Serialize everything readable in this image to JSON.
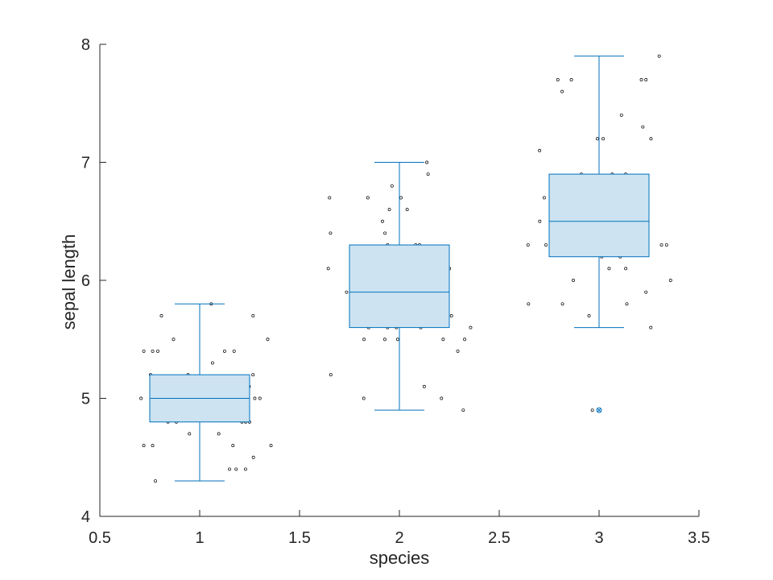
{
  "chart_data": {
    "type": "box",
    "xlabel": "species",
    "ylabel": "sepal length",
    "xlim": [
      0.5,
      3.5
    ],
    "ylim": [
      4,
      8
    ],
    "xticks": [
      "0.5",
      "1",
      "1.5",
      "2",
      "2.5",
      "3",
      "3.5"
    ],
    "yticks": [
      "4",
      "5",
      "6",
      "7",
      "8"
    ],
    "grid": false,
    "colors": {
      "box_fill": "#cde3f1",
      "box_edge": "#0072bd",
      "point": "#000000",
      "axis": "#262626"
    },
    "boxes": [
      {
        "x": 1,
        "min": 4.3,
        "q1": 4.8,
        "median": 5.0,
        "q3": 5.2,
        "max": 5.8,
        "outliers": []
      },
      {
        "x": 2,
        "min": 4.9,
        "q1": 5.6,
        "median": 5.9,
        "q3": 6.3,
        "max": 7.0,
        "outliers": []
      },
      {
        "x": 3,
        "min": 5.6,
        "q1": 6.2,
        "median": 6.5,
        "q3": 6.9,
        "max": 7.9,
        "outliers": [
          4.9
        ]
      }
    ],
    "points": [
      {
        "x": 1,
        "y": 5.1
      },
      {
        "x": 1,
        "y": 4.9
      },
      {
        "x": 1,
        "y": 4.7
      },
      {
        "x": 1,
        "y": 4.6
      },
      {
        "x": 1,
        "y": 5.0
      },
      {
        "x": 1,
        "y": 5.4
      },
      {
        "x": 1,
        "y": 4.6
      },
      {
        "x": 1,
        "y": 5.0
      },
      {
        "x": 1,
        "y": 4.4
      },
      {
        "x": 1,
        "y": 4.9
      },
      {
        "x": 1,
        "y": 5.4
      },
      {
        "x": 1,
        "y": 4.8
      },
      {
        "x": 1,
        "y": 4.8
      },
      {
        "x": 1,
        "y": 4.3
      },
      {
        "x": 1,
        "y": 5.8
      },
      {
        "x": 1,
        "y": 5.7
      },
      {
        "x": 1,
        "y": 5.4
      },
      {
        "x": 1,
        "y": 5.1
      },
      {
        "x": 1,
        "y": 5.7
      },
      {
        "x": 1,
        "y": 5.1
      },
      {
        "x": 1,
        "y": 5.4
      },
      {
        "x": 1,
        "y": 5.1
      },
      {
        "x": 1,
        "y": 4.6
      },
      {
        "x": 1,
        "y": 5.1
      },
      {
        "x": 1,
        "y": 4.8
      },
      {
        "x": 1,
        "y": 5.0
      },
      {
        "x": 1,
        "y": 5.0
      },
      {
        "x": 1,
        "y": 5.2
      },
      {
        "x": 1,
        "y": 5.2
      },
      {
        "x": 1,
        "y": 4.7
      },
      {
        "x": 1,
        "y": 4.8
      },
      {
        "x": 1,
        "y": 5.4
      },
      {
        "x": 1,
        "y": 5.2
      },
      {
        "x": 1,
        "y": 5.5
      },
      {
        "x": 1,
        "y": 4.9
      },
      {
        "x": 1,
        "y": 5.0
      },
      {
        "x": 1,
        "y": 5.5
      },
      {
        "x": 1,
        "y": 4.9
      },
      {
        "x": 1,
        "y": 4.4
      },
      {
        "x": 1,
        "y": 5.1
      },
      {
        "x": 1,
        "y": 5.0
      },
      {
        "x": 1,
        "y": 4.5
      },
      {
        "x": 1,
        "y": 4.4
      },
      {
        "x": 1,
        "y": 5.0
      },
      {
        "x": 1,
        "y": 5.1
      },
      {
        "x": 1,
        "y": 4.8
      },
      {
        "x": 1,
        "y": 5.1
      },
      {
        "x": 1,
        "y": 4.6
      },
      {
        "x": 1,
        "y": 5.3
      },
      {
        "x": 1,
        "y": 5.0
      },
      {
        "x": 2,
        "y": 7.0
      },
      {
        "x": 2,
        "y": 6.4
      },
      {
        "x": 2,
        "y": 6.9
      },
      {
        "x": 2,
        "y": 5.5
      },
      {
        "x": 2,
        "y": 6.5
      },
      {
        "x": 2,
        "y": 5.7
      },
      {
        "x": 2,
        "y": 6.3
      },
      {
        "x": 2,
        "y": 4.9
      },
      {
        "x": 2,
        "y": 6.6
      },
      {
        "x": 2,
        "y": 5.2
      },
      {
        "x": 2,
        "y": 5.0
      },
      {
        "x": 2,
        "y": 5.9
      },
      {
        "x": 2,
        "y": 6.0
      },
      {
        "x": 2,
        "y": 6.1
      },
      {
        "x": 2,
        "y": 5.6
      },
      {
        "x": 2,
        "y": 6.7
      },
      {
        "x": 2,
        "y": 5.6
      },
      {
        "x": 2,
        "y": 5.8
      },
      {
        "x": 2,
        "y": 6.2
      },
      {
        "x": 2,
        "y": 5.6
      },
      {
        "x": 2,
        "y": 5.9
      },
      {
        "x": 2,
        "y": 6.1
      },
      {
        "x": 2,
        "y": 6.3
      },
      {
        "x": 2,
        "y": 6.1
      },
      {
        "x": 2,
        "y": 6.4
      },
      {
        "x": 2,
        "y": 6.6
      },
      {
        "x": 2,
        "y": 6.8
      },
      {
        "x": 2,
        "y": 6.7
      },
      {
        "x": 2,
        "y": 6.0
      },
      {
        "x": 2,
        "y": 5.7
      },
      {
        "x": 2,
        "y": 5.5
      },
      {
        "x": 2,
        "y": 5.5
      },
      {
        "x": 2,
        "y": 5.8
      },
      {
        "x": 2,
        "y": 6.0
      },
      {
        "x": 2,
        "y": 5.4
      },
      {
        "x": 2,
        "y": 6.0
      },
      {
        "x": 2,
        "y": 6.7
      },
      {
        "x": 2,
        "y": 6.3
      },
      {
        "x": 2,
        "y": 5.6
      },
      {
        "x": 2,
        "y": 5.5
      },
      {
        "x": 2,
        "y": 5.5
      },
      {
        "x": 2,
        "y": 6.1
      },
      {
        "x": 2,
        "y": 5.8
      },
      {
        "x": 2,
        "y": 5.0
      },
      {
        "x": 2,
        "y": 5.6
      },
      {
        "x": 2,
        "y": 5.7
      },
      {
        "x": 2,
        "y": 5.7
      },
      {
        "x": 2,
        "y": 6.2
      },
      {
        "x": 2,
        "y": 5.1
      },
      {
        "x": 2,
        "y": 5.7
      },
      {
        "x": 3,
        "y": 6.3
      },
      {
        "x": 3,
        "y": 5.8
      },
      {
        "x": 3,
        "y": 7.1
      },
      {
        "x": 3,
        "y": 6.3
      },
      {
        "x": 3,
        "y": 6.5
      },
      {
        "x": 3,
        "y": 7.6
      },
      {
        "x": 3,
        "y": 4.9
      },
      {
        "x": 3,
        "y": 7.3
      },
      {
        "x": 3,
        "y": 6.7
      },
      {
        "x": 3,
        "y": 7.2
      },
      {
        "x": 3,
        "y": 6.5
      },
      {
        "x": 3,
        "y": 6.4
      },
      {
        "x": 3,
        "y": 6.8
      },
      {
        "x": 3,
        "y": 5.7
      },
      {
        "x": 3,
        "y": 5.8
      },
      {
        "x": 3,
        "y": 6.4
      },
      {
        "x": 3,
        "y": 6.5
      },
      {
        "x": 3,
        "y": 7.7
      },
      {
        "x": 3,
        "y": 7.7
      },
      {
        "x": 3,
        "y": 6.0
      },
      {
        "x": 3,
        "y": 6.9
      },
      {
        "x": 3,
        "y": 5.6
      },
      {
        "x": 3,
        "y": 7.7
      },
      {
        "x": 3,
        "y": 6.3
      },
      {
        "x": 3,
        "y": 6.7
      },
      {
        "x": 3,
        "y": 7.2
      },
      {
        "x": 3,
        "y": 6.2
      },
      {
        "x": 3,
        "y": 6.1
      },
      {
        "x": 3,
        "y": 6.4
      },
      {
        "x": 3,
        "y": 7.2
      },
      {
        "x": 3,
        "y": 7.4
      },
      {
        "x": 3,
        "y": 7.9
      },
      {
        "x": 3,
        "y": 6.4
      },
      {
        "x": 3,
        "y": 6.3
      },
      {
        "x": 3,
        "y": 6.1
      },
      {
        "x": 3,
        "y": 7.7
      },
      {
        "x": 3,
        "y": 6.3
      },
      {
        "x": 3,
        "y": 6.4
      },
      {
        "x": 3,
        "y": 6.0
      },
      {
        "x": 3,
        "y": 6.9
      },
      {
        "x": 3,
        "y": 6.7
      },
      {
        "x": 3,
        "y": 6.9
      },
      {
        "x": 3,
        "y": 5.8
      },
      {
        "x": 3,
        "y": 6.8
      },
      {
        "x": 3,
        "y": 6.7
      },
      {
        "x": 3,
        "y": 6.7
      },
      {
        "x": 3,
        "y": 6.3
      },
      {
        "x": 3,
        "y": 6.5
      },
      {
        "x": 3,
        "y": 6.2
      },
      {
        "x": 3,
        "y": 5.9
      }
    ]
  }
}
